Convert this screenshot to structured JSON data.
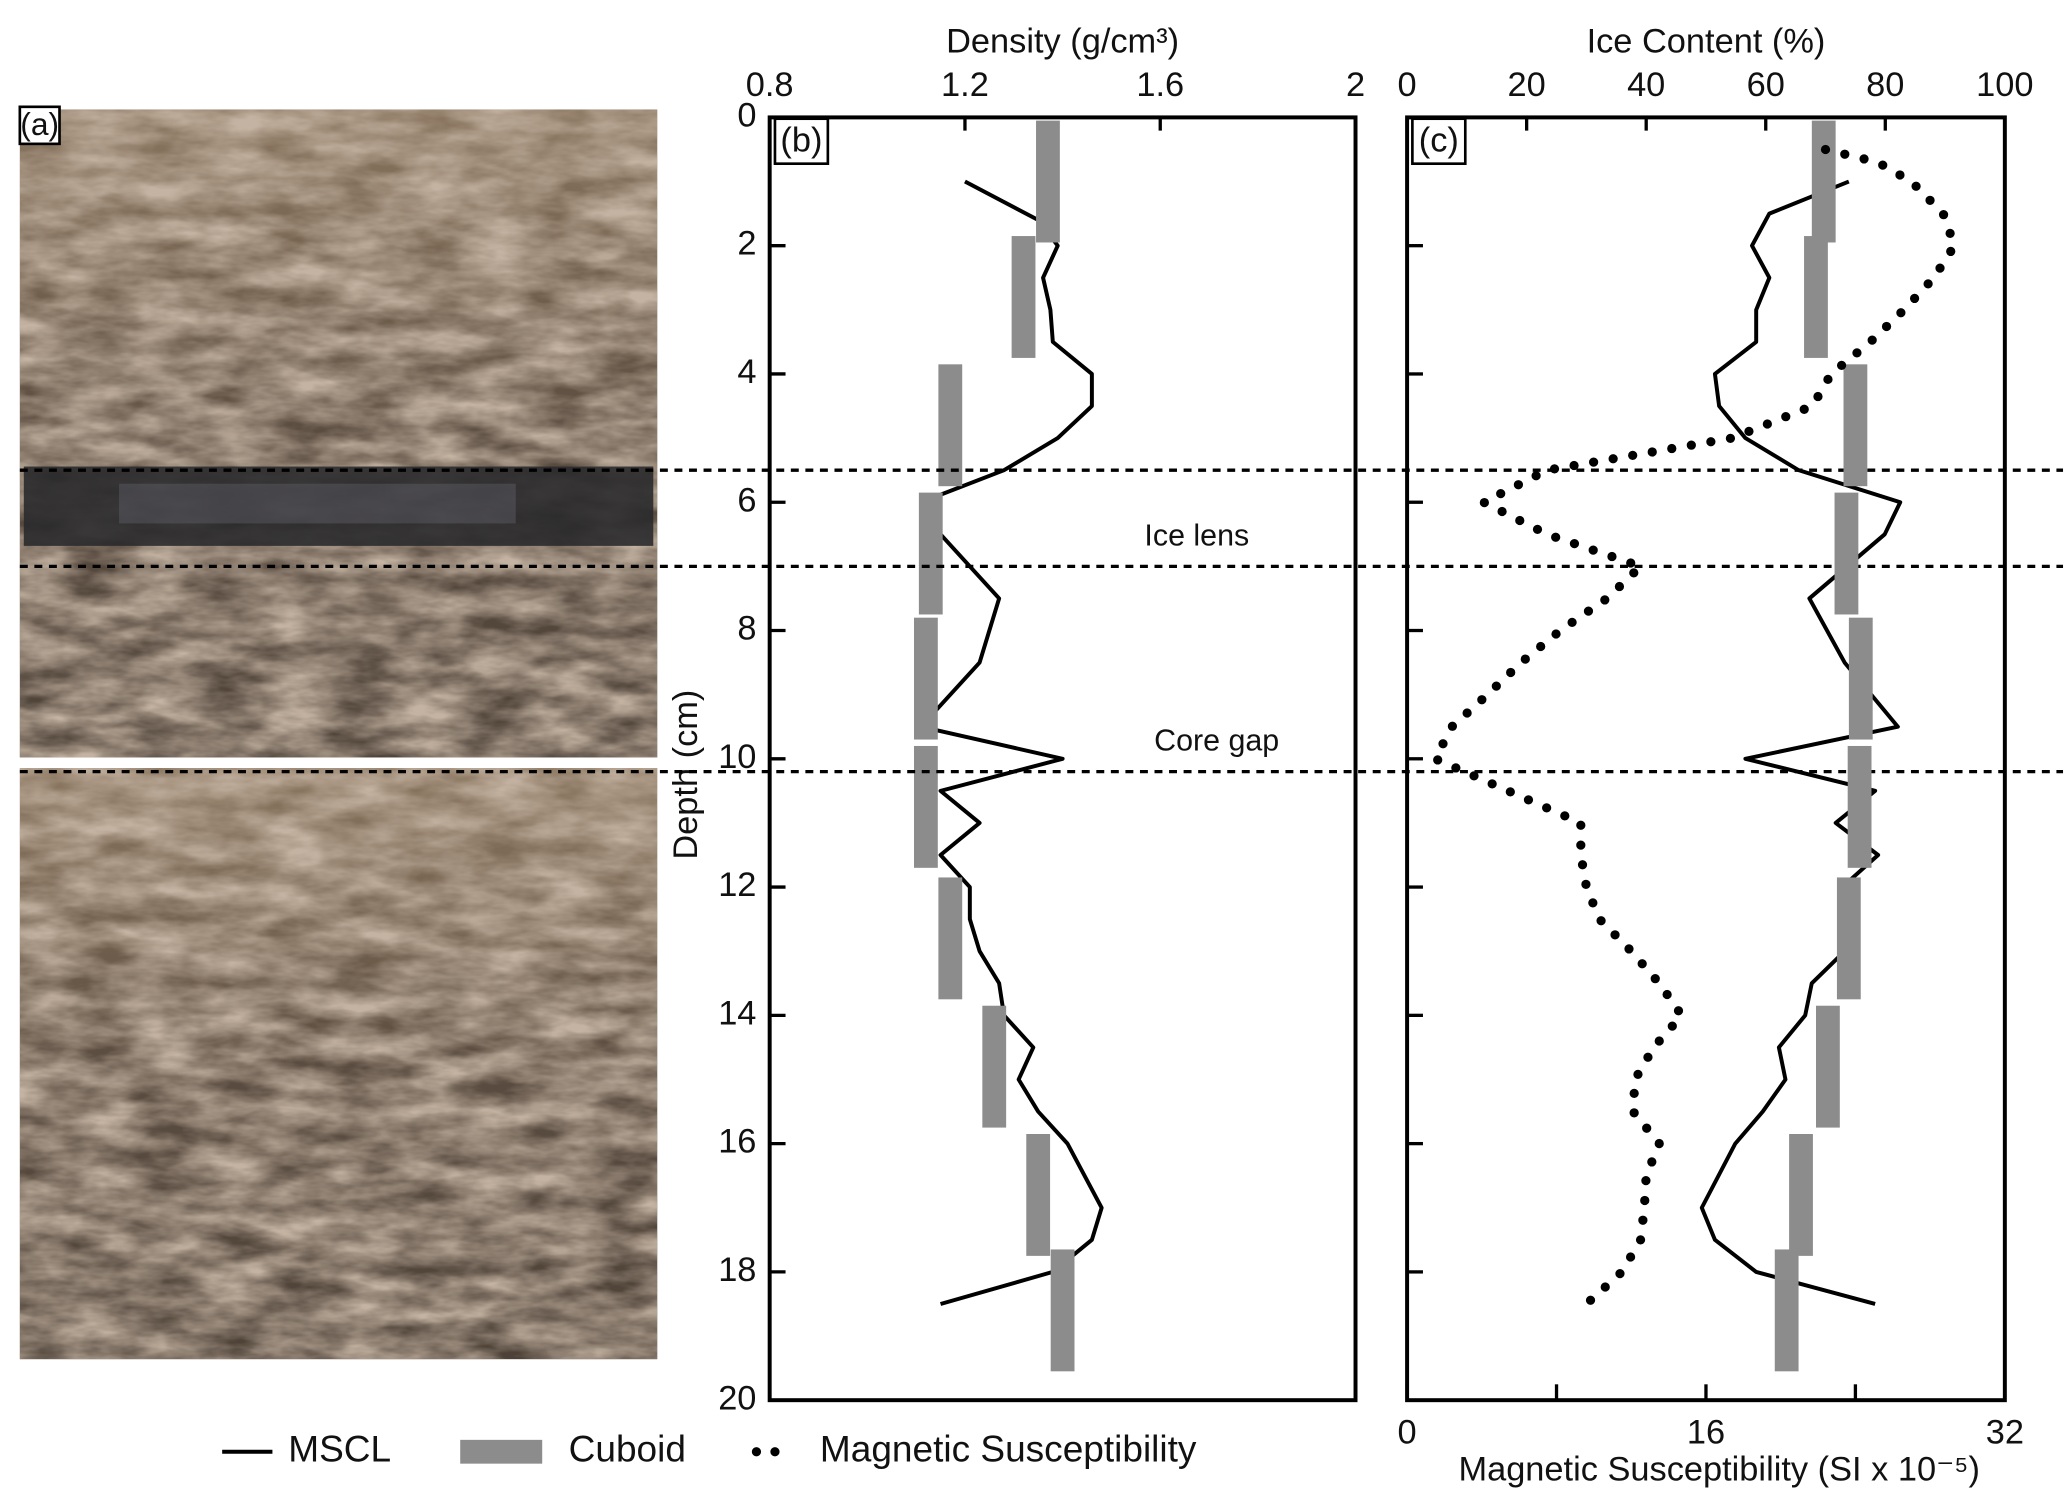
{
  "photo_label": "(a)",
  "chart_data": [
    {
      "type": "line",
      "label": "(b)",
      "xlabel": "Density (g/cm³)",
      "ylabel": "Depth (cm)",
      "xlim": [
        0.8,
        2
      ],
      "xticks": [
        0.8,
        1.2,
        1.6,
        2
      ],
      "ylim": [
        0,
        20
      ],
      "yticks": [
        0,
        2,
        4,
        6,
        8,
        10,
        12,
        14,
        16,
        18,
        20
      ],
      "hlines": [
        5.5,
        7.0,
        10.2
      ],
      "annotations": [
        "Ice lens",
        "Core gap"
      ],
      "series": [
        {
          "name": "MSCL",
          "kind": "line",
          "color": "#000000",
          "depths": [
            1.0,
            1.6,
            2.0,
            2.5,
            3.0,
            3.5,
            4.0,
            4.5,
            5.0,
            5.5,
            6.0,
            6.5,
            7.5,
            8.5,
            9.5,
            10.0,
            10.5,
            11.0,
            11.5,
            12.0,
            12.5,
            13.0,
            13.5,
            14.0,
            14.5,
            15.0,
            15.5,
            16.0,
            17.0,
            17.5,
            18.0,
            18.5
          ],
          "values": [
            1.2,
            1.35,
            1.39,
            1.36,
            1.375,
            1.38,
            1.46,
            1.46,
            1.39,
            1.28,
            1.11,
            1.15,
            1.27,
            1.23,
            1.11,
            1.4,
            1.15,
            1.23,
            1.15,
            1.21,
            1.21,
            1.23,
            1.27,
            1.28,
            1.34,
            1.31,
            1.35,
            1.41,
            1.48,
            1.46,
            1.38,
            1.15
          ]
        },
        {
          "name": "Cuboid",
          "kind": "bar",
          "color": "#8c8c8c",
          "depths": [
            1.0,
            2.8,
            4.8,
            6.8,
            8.75,
            10.75,
            12.8,
            14.8,
            16.8,
            18.6
          ],
          "values": [
            1.37,
            1.32,
            1.17,
            1.13,
            1.12,
            1.12,
            1.17,
            1.26,
            1.35,
            1.4
          ]
        }
      ]
    },
    {
      "type": "line",
      "label": "(c)",
      "xlabel": "Ice Content (%)",
      "x2label": "Magnetic Susceptibility (SI x 10⁻⁵)",
      "xlim": [
        0,
        100
      ],
      "xticks": [
        0,
        20,
        40,
        60,
        80,
        100
      ],
      "x2lim": [
        0,
        32
      ],
      "x2ticks": [
        0,
        16,
        32
      ],
      "x2minor_ticks": [
        8,
        24
      ],
      "ylim": [
        0,
        20
      ],
      "yticks": [
        0,
        2,
        4,
        6,
        8,
        10,
        12,
        14,
        16,
        18,
        20
      ],
      "series": [
        {
          "name": "MSCL",
          "kind": "line",
          "color": "#000000",
          "depths": [
            1.0,
            1.5,
            2.0,
            2.5,
            3.0,
            3.5,
            4.0,
            4.5,
            5.0,
            5.5,
            6.0,
            6.5,
            7.5,
            8.5,
            9.5,
            10.0,
            10.5,
            11.0,
            11.5,
            12.0,
            12.5,
            13.0,
            13.5,
            14.0,
            14.5,
            15.0,
            15.5,
            16.0,
            17.0,
            17.5,
            18.0,
            18.5
          ],
          "values": [
            73.9,
            60.6,
            57.7,
            60.6,
            58.4,
            58.4,
            51.5,
            52.2,
            56.6,
            65.5,
            82.5,
            79.9,
            67.3,
            73.2,
            82.1,
            56.6,
            78.3,
            71.7,
            78.8,
            72.8,
            73.9,
            73.2,
            67.7,
            66.6,
            62.2,
            63.3,
            59.5,
            54.9,
            49.3,
            51.5,
            58.4,
            78.3
          ]
        },
        {
          "name": "Cuboid",
          "kind": "bar",
          "color": "#8c8c8c",
          "depths": [
            1.0,
            2.8,
            4.8,
            6.8,
            8.75,
            10.75,
            12.8,
            14.8,
            16.8,
            18.6
          ],
          "values": [
            69.7,
            68.4,
            75.0,
            73.5,
            75.9,
            75.7,
            73.9,
            70.4,
            65.9,
            63.5
          ]
        },
        {
          "name": "Magnetic Susceptibility",
          "kind": "dots",
          "color": "#000000",
          "axis": "x2",
          "depths": [
            0.5,
            0.7,
            1.0,
            1.5,
            2.0,
            2.5,
            3.0,
            3.5,
            4.0,
            4.5,
            5.0,
            5.5,
            6.0,
            6.5,
            7.0,
            7.5,
            8.0,
            8.5,
            9.0,
            9.5,
            10.0,
            10.5,
            11.0,
            11.5,
            12.0,
            12.5,
            13.0,
            13.5,
            14.0,
            14.5,
            15.0,
            15.5,
            16.0,
            16.5,
            17.0,
            17.5,
            18.0,
            18.5
          ],
          "values": [
            22.4,
            25.2,
            27.0,
            28.7,
            29.3,
            28.2,
            26.6,
            24.8,
            22.7,
            21.7,
            17.4,
            7.5,
            4.1,
            7.5,
            12.5,
            10.7,
            8.2,
            6.1,
            4.3,
            2.4,
            1.5,
            5.4,
            9.3,
            9.3,
            9.6,
            10.3,
            12.0,
            13.5,
            14.7,
            13.2,
            12.2,
            12.1,
            13.5,
            12.8,
            12.7,
            12.5,
            11.5,
            9.6
          ]
        }
      ]
    }
  ]
}
